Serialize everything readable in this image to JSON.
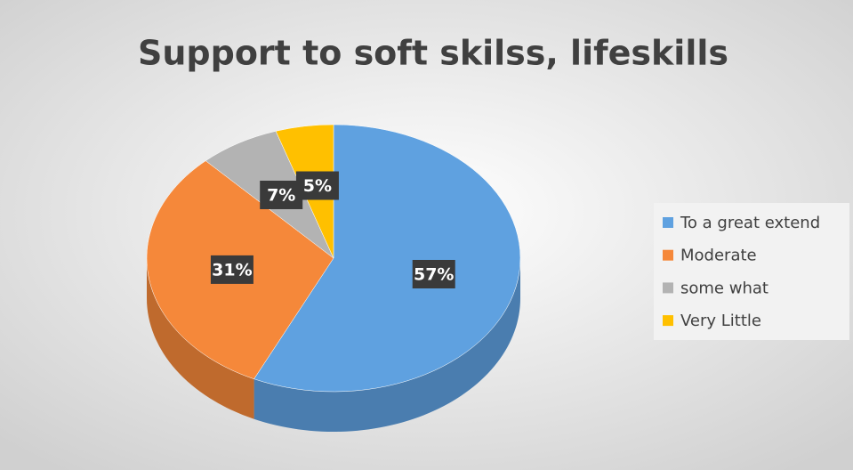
{
  "chart_data": {
    "type": "pie",
    "title": "Support to soft skilss, lifeskills",
    "categories": [
      "To a great extend",
      "Moderate",
      "some what",
      "Very Little"
    ],
    "values": [
      57,
      31,
      7,
      5
    ],
    "value_labels": [
      "57%",
      "31%",
      "7%",
      "5%"
    ],
    "colors": [
      "#5fa1e0",
      "#f5883a",
      "#b3b3b3",
      "#ffc000"
    ],
    "legend": "right"
  }
}
